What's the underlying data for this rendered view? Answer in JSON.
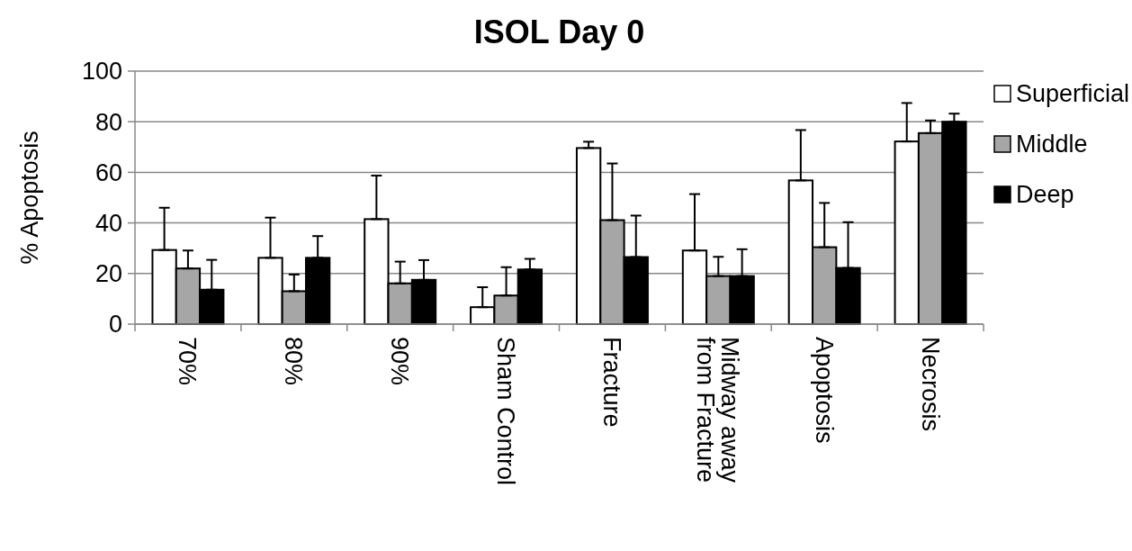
{
  "chart_data": {
    "type": "bar",
    "title": "ISOL Day 0",
    "ylabel": "% Apoptosis",
    "categories": [
      "70%",
      "80%",
      "90%",
      "Sham Control",
      "Fracture",
      "Midway away from Fracture",
      "Apoptosis",
      "Necrosis"
    ],
    "series": [
      {
        "name": "Superficial",
        "color": "#ffffff",
        "values": [
          29.3,
          26.2,
          41.5,
          6.7,
          69.6,
          29.1,
          56.8,
          72.2
        ],
        "errors": [
          [
            29.3,
            46.0
          ],
          [
            26.2,
            42.1
          ],
          [
            41.5,
            58.7
          ],
          [
            6.7,
            14.6
          ],
          [
            69.6,
            72.1
          ],
          [
            29.1,
            51.4
          ],
          [
            56.8,
            76.7
          ],
          [
            72.2,
            87.4
          ]
        ]
      },
      {
        "name": "Middle",
        "color": "#a6a6a6",
        "values": [
          22.0,
          13.0,
          16.1,
          11.3,
          41.1,
          19.0,
          30.4,
          75.5
        ],
        "errors": [
          [
            22.0,
            29.1
          ],
          [
            13.0,
            19.6
          ],
          [
            16.1,
            24.7
          ],
          [
            11.3,
            22.5
          ],
          [
            41.1,
            63.5
          ],
          [
            19.0,
            26.6
          ],
          [
            30.4,
            47.9
          ],
          [
            75.5,
            80.5
          ]
        ]
      },
      {
        "name": "Deep",
        "color": "#000000",
        "values": [
          13.6,
          26.2,
          17.5,
          21.6,
          26.5,
          19.0,
          22.2,
          80.0
        ],
        "errors": [
          [
            13.6,
            25.4
          ],
          [
            26.2,
            34.8
          ],
          [
            17.5,
            25.3
          ],
          [
            21.6,
            25.8
          ],
          [
            26.5,
            42.9
          ],
          [
            19.0,
            29.6
          ],
          [
            22.2,
            40.3
          ],
          [
            80.0,
            83.2
          ]
        ]
      }
    ],
    "ylim": [
      0,
      100
    ],
    "yticks": [
      0,
      20,
      40,
      60,
      80,
      100
    ],
    "grid": "y",
    "legend": "right"
  }
}
